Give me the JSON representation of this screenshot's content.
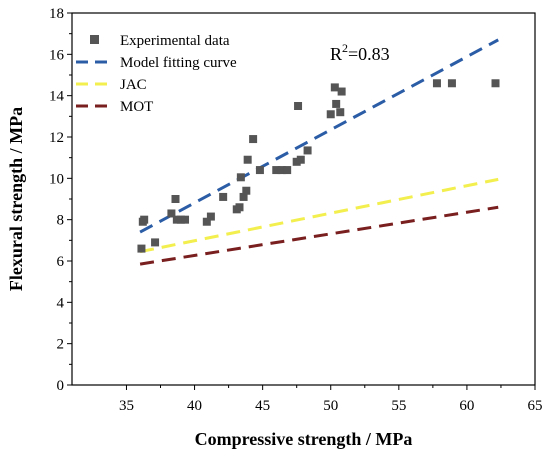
{
  "chart_data": {
    "type": "scatter",
    "xlabel": "Compressive strength / MPa",
    "ylabel": "Flexural strength / MPa",
    "xlim": [
      31,
      65
    ],
    "ylim": [
      0,
      18
    ],
    "xticks": [
      35,
      40,
      45,
      50,
      55,
      60,
      65
    ],
    "yticks": [
      0,
      2,
      4,
      6,
      8,
      10,
      12,
      14,
      16,
      18
    ],
    "grid": false,
    "legend_position": "top-left",
    "annotation": {
      "base": "R",
      "sup": "2",
      "rest": "=0.83"
    },
    "series": [
      {
        "name": "Experimental data",
        "kind": "points",
        "color": "#555555",
        "points": [
          [
            36.1,
            6.6
          ],
          [
            36.2,
            7.9
          ],
          [
            36.3,
            8.0
          ],
          [
            37.1,
            6.9
          ],
          [
            38.3,
            8.3
          ],
          [
            38.6,
            9.0
          ],
          [
            38.7,
            8.0
          ],
          [
            39.0,
            8.0
          ],
          [
            39.3,
            8.0
          ],
          [
            40.9,
            7.9
          ],
          [
            41.2,
            8.15
          ],
          [
            42.1,
            9.1
          ],
          [
            43.1,
            8.5
          ],
          [
            43.3,
            8.6
          ],
          [
            43.4,
            10.05
          ],
          [
            43.6,
            9.1
          ],
          [
            43.8,
            9.4
          ],
          [
            43.9,
            10.9
          ],
          [
            44.3,
            11.9
          ],
          [
            44.8,
            10.4
          ],
          [
            46.0,
            10.4
          ],
          [
            46.4,
            10.4
          ],
          [
            46.8,
            10.4
          ],
          [
            47.5,
            10.8
          ],
          [
            47.6,
            13.5
          ],
          [
            47.8,
            10.9
          ],
          [
            48.3,
            11.35
          ],
          [
            50.0,
            13.1
          ],
          [
            50.3,
            14.4
          ],
          [
            50.4,
            13.6
          ],
          [
            50.7,
            13.2
          ],
          [
            50.8,
            14.2
          ],
          [
            57.8,
            14.6
          ],
          [
            58.9,
            14.6
          ],
          [
            62.1,
            14.6
          ]
        ]
      },
      {
        "name": "Model fitting curve",
        "kind": "line",
        "color": "#2b5ca6",
        "points": [
          [
            36.0,
            7.4
          ],
          [
            62.3,
            16.7
          ]
        ]
      },
      {
        "name": "JAC",
        "kind": "line",
        "color": "#f2ef4f",
        "points": [
          [
            36.0,
            6.45
          ],
          [
            62.3,
            9.95
          ]
        ]
      },
      {
        "name": "MOT",
        "kind": "line",
        "color": "#7a1f1f",
        "points": [
          [
            36.0,
            5.85
          ],
          [
            62.3,
            8.6
          ]
        ]
      }
    ]
  }
}
